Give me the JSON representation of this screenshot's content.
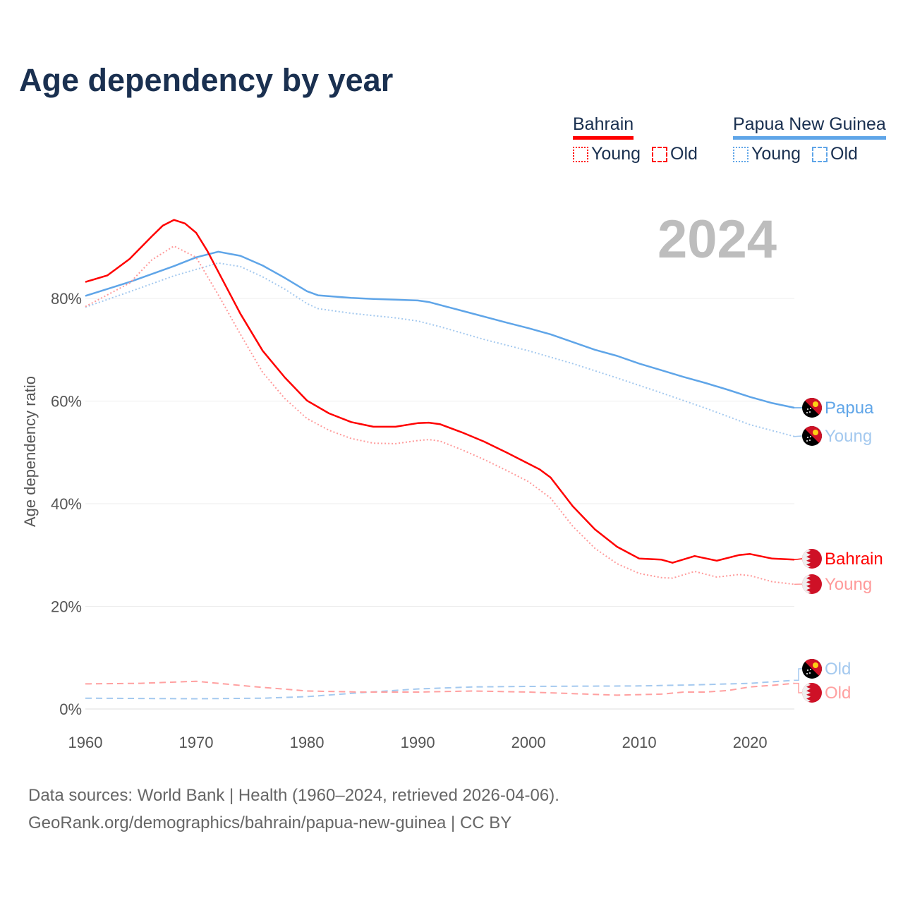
{
  "chart_data": {
    "type": "line",
    "title": "Age dependency by year",
    "ylabel": "Age dependency ratio",
    "xlabel": "",
    "xlim": [
      1960,
      2024
    ],
    "ylim": [
      0,
      100
    ],
    "x_ticks": [
      "1960",
      "1970",
      "1980",
      "1990",
      "2000",
      "2010",
      "2020"
    ],
    "y_ticks": [
      "0%",
      "20%",
      "40%",
      "60%",
      "80%"
    ],
    "grid": true,
    "current_year": "2024",
    "legend": {
      "placement": "top-right",
      "groups": [
        {
          "country": "Bahrain",
          "color": "#ff0000",
          "items": [
            "Young",
            "Old"
          ]
        },
        {
          "country": "Papua New Guinea",
          "color": "#5fa5e8",
          "items": [
            "Young",
            "Old"
          ]
        }
      ]
    },
    "series": [
      {
        "name": "Papua New Guinea",
        "label": "Papua",
        "color": "#5fa5e8",
        "style": "solid",
        "x": [
          1960,
          1964,
          1968,
          1970,
          1972,
          1974,
          1976,
          1978,
          1980,
          1981,
          1984,
          1986,
          1990,
          1991,
          1994,
          1998,
          2000,
          2002,
          2006,
          2008,
          2010,
          2012,
          2014,
          2016,
          2018,
          2020,
          2022,
          2024
        ],
        "values": [
          80.5,
          83.2,
          86.3,
          88,
          89.1,
          88.3,
          86.4,
          84,
          81.4,
          80.6,
          80.1,
          79.9,
          79.6,
          79.3,
          77.6,
          75.3,
          74.2,
          73,
          70,
          68.8,
          67.3,
          66,
          64.7,
          63.5,
          62.2,
          60.8,
          59.6,
          58.7
        ]
      },
      {
        "name": "Papua New Guinea Young",
        "label": "Young",
        "color": "#a4c9ef",
        "style": "dotted",
        "x": [
          1960,
          1964,
          1968,
          1972,
          1974,
          1976,
          1978,
          1980,
          1981,
          1984,
          1988,
          1990,
          1992,
          1996,
          2000,
          2004,
          2008,
          2012,
          2016,
          2020,
          2024
        ],
        "values": [
          78.3,
          81.3,
          84.4,
          86.9,
          86.2,
          84.2,
          81.8,
          79,
          78,
          77.1,
          76.2,
          75.6,
          74.5,
          72,
          69.8,
          67.3,
          64.5,
          61.6,
          58.6,
          55.4,
          53.1
        ]
      },
      {
        "name": "Bahrain",
        "label": "Bahrain",
        "color": "#ff0000",
        "style": "solid",
        "x": [
          1960,
          1962,
          1964,
          1966,
          1967,
          1968,
          1969,
          1970,
          1971,
          1972,
          1974,
          1976,
          1978,
          1980,
          1982,
          1984,
          1986,
          1988,
          1990,
          1991,
          1992,
          1994,
          1996,
          1998,
          2000,
          2001,
          2002,
          2004,
          2006,
          2008,
          2010,
          2012,
          2013,
          2015,
          2017,
          2019,
          2020,
          2022,
          2024
        ],
        "values": [
          83.2,
          84.5,
          87.7,
          92.1,
          94.2,
          95.3,
          94.6,
          92.8,
          89.3,
          85.2,
          77,
          69.8,
          64.6,
          60.1,
          57.6,
          55.9,
          55,
          55,
          55.7,
          55.8,
          55.5,
          53.9,
          52.1,
          50,
          47.8,
          46.7,
          45.1,
          39.5,
          35,
          31.6,
          29.3,
          29.1,
          28.5,
          29.8,
          28.9,
          30,
          30.2,
          29.3,
          29.1
        ]
      },
      {
        "name": "Bahrain Young",
        "label": "Young",
        "color": "#ff9a9a",
        "style": "dotted",
        "x": [
          1960,
          1964,
          1966,
          1968,
          1970,
          1972,
          1974,
          1976,
          1978,
          1980,
          1982,
          1984,
          1986,
          1988,
          1990,
          1991,
          1992,
          1994,
          1996,
          1998,
          2000,
          2002,
          2004,
          2006,
          2008,
          2010,
          2012,
          2013,
          2015,
          2017,
          2019,
          2020,
          2022,
          2024
        ],
        "values": [
          78.4,
          83,
          87.5,
          90.2,
          88,
          80.7,
          73,
          65.6,
          60.5,
          56.6,
          54.3,
          52.7,
          51.8,
          51.7,
          52.3,
          52.5,
          52.2,
          50.5,
          48.6,
          46.5,
          44.3,
          41.1,
          35.6,
          31.3,
          28.3,
          26.4,
          25.6,
          25.5,
          26.8,
          25.7,
          26.2,
          26,
          24.8,
          24.3
        ]
      },
      {
        "name": "Papua New Guinea Old",
        "label": "Old",
        "color": "#a4c9ef",
        "style": "dashed",
        "x": [
          1960,
          1970,
          1976,
          1980,
          1985,
          1990,
          1995,
          2000,
          2010,
          2015,
          2020,
          2024
        ],
        "values": [
          2.1,
          2.0,
          2.1,
          2.4,
          3.2,
          3.9,
          4.3,
          4.4,
          4.5,
          4.7,
          5.0,
          5.6
        ]
      },
      {
        "name": "Bahrain Old",
        "label": "Old",
        "color": "#ffa0a0",
        "style": "dashed",
        "x": [
          1960,
          1965,
          1970,
          1975,
          1980,
          1985,
          1990,
          1995,
          2000,
          2004,
          2008,
          2012,
          2014,
          2016,
          2018,
          2020,
          2022,
          2024
        ],
        "values": [
          4.9,
          5.0,
          5.4,
          4.4,
          3.5,
          3.3,
          3.3,
          3.5,
          3.3,
          3.0,
          2.7,
          2.9,
          3.3,
          3.3,
          3.6,
          4.3,
          4.6,
          5.0
        ]
      }
    ],
    "end_labels": [
      {
        "text": "Papua",
        "color": "#5fa5e8",
        "flag": "png",
        "value": 58.7
      },
      {
        "text": "Young",
        "color": "#a4c9ef",
        "flag": "png",
        "value": 53.1
      },
      {
        "text": "Bahrain",
        "color": "#ff0000",
        "flag": "bahrain",
        "value": 29.1
      },
      {
        "text": "Young",
        "color": "#ff9a9a",
        "flag": "bahrain",
        "value": 24.3
      },
      {
        "text": "Old",
        "color": "#a4c9ef",
        "flag": "png",
        "value": 5.6
      },
      {
        "text": "Old",
        "color": "#ffa0a0",
        "flag": "bahrain",
        "value": 5.0
      }
    ]
  },
  "legend": {
    "bahrain": "Bahrain",
    "png": "Papua New Guinea",
    "young": "Young",
    "old": "Old"
  },
  "footer": {
    "line1": "Data sources: World Bank | Health (1960–2024, retrieved 2026-04-06).",
    "line2": "GeoRank.org/demographics/bahrain/papua-new-guinea | CC BY"
  }
}
